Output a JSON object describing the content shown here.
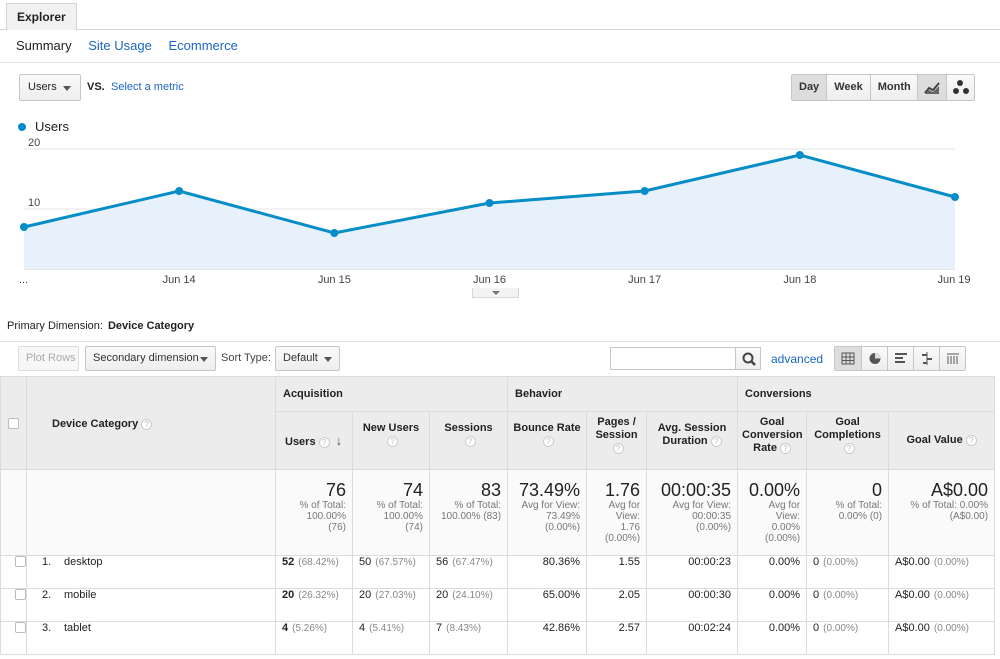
{
  "tabs": {
    "explorer": "Explorer"
  },
  "subtabs": [
    {
      "label": "Summary",
      "active": true
    },
    {
      "label": "Site Usage",
      "active": false
    },
    {
      "label": "Ecommerce",
      "active": false
    }
  ],
  "chart_controls": {
    "metric": "Users",
    "vs": "VS.",
    "select_metric": "Select a metric",
    "periods": [
      "Day",
      "Week",
      "Month"
    ],
    "active_period": "Day"
  },
  "chart_data": {
    "type": "line",
    "legend": [
      "Users"
    ],
    "x": [
      "...",
      "Jun 14",
      "Jun 15",
      "Jun 16",
      "Jun 17",
      "Jun 18",
      "Jun 19"
    ],
    "y_ticks": [
      "10",
      "20"
    ],
    "ylim": [
      0,
      20
    ],
    "series": [
      {
        "name": "Users",
        "values": [
          7,
          13,
          6,
          11,
          13,
          19,
          12
        ]
      }
    ],
    "color": "#058dc7",
    "fill": "#e7f1fb"
  },
  "dimension": {
    "label": "Primary Dimension:",
    "value": "Device Category"
  },
  "toolbar": {
    "plot_rows": "Plot Rows",
    "secondary_dimension": "Secondary dimension",
    "sort_type_label": "Sort Type:",
    "sort_type_value": "Default",
    "search_value": "",
    "advanced": "advanced"
  },
  "table": {
    "dimension_header": "Device Category",
    "groups": [
      "Acquisition",
      "Behavior",
      "Conversions"
    ],
    "columns": [
      {
        "label": "Users"
      },
      {
        "label": "New Users"
      },
      {
        "label": "Sessions"
      },
      {
        "label": "Bounce Rate"
      },
      {
        "label": "Pages / Session"
      },
      {
        "label": "Avg. Session Duration"
      },
      {
        "label": "Goal Conversion Rate"
      },
      {
        "label": "Goal Completions"
      },
      {
        "label": "Goal Value"
      }
    ],
    "totals": [
      {
        "value": "76",
        "sub": "% of Total:\n100.00%\n(76)"
      },
      {
        "value": "74",
        "sub": "% of Total:\n100.00%\n(74)"
      },
      {
        "value": "83",
        "sub": "% of Total:\n100.00% (83)"
      },
      {
        "value": "73.49%",
        "sub": "Avg for View:\n73.49%\n(0.00%)"
      },
      {
        "value": "1.76",
        "sub": "Avg for\nView:\n1.76\n(0.00%)"
      },
      {
        "value": "00:00:35",
        "sub": "Avg for View:\n00:00:35\n(0.00%)"
      },
      {
        "value": "0.00%",
        "sub": "Avg for\nView:\n0.00%\n(0.00%)"
      },
      {
        "value": "0",
        "sub": "% of Total:\n0.00% (0)"
      },
      {
        "value": "A$0.00",
        "sub": "% of Total: 0.00%\n(A$0.00)"
      }
    ],
    "rows": [
      {
        "index": "1.",
        "name": "desktop",
        "users": "52",
        "users_pct": "(68.42%)",
        "new_users": "50",
        "new_users_pct": "(67.57%)",
        "sessions": "56",
        "sessions_pct": "(67.47%)",
        "bounce": "80.36%",
        "pages": "1.55",
        "duration": "00:00:23",
        "conv_rate": "0.00%",
        "completions": "0",
        "completions_pct": "(0.00%)",
        "value": "A$0.00",
        "value_pct": "(0.00%)"
      },
      {
        "index": "2.",
        "name": "mobile",
        "users": "20",
        "users_pct": "(26.32%)",
        "new_users": "20",
        "new_users_pct": "(27.03%)",
        "sessions": "20",
        "sessions_pct": "(24.10%)",
        "bounce": "65.00%",
        "pages": "2.05",
        "duration": "00:00:30",
        "conv_rate": "0.00%",
        "completions": "0",
        "completions_pct": "(0.00%)",
        "value": "A$0.00",
        "value_pct": "(0.00%)"
      },
      {
        "index": "3.",
        "name": "tablet",
        "users": "4",
        "users_pct": "(5.26%)",
        "new_users": "4",
        "new_users_pct": "(5.41%)",
        "sessions": "7",
        "sessions_pct": "(8.43%)",
        "bounce": "42.86%",
        "pages": "2.57",
        "duration": "00:02:24",
        "conv_rate": "0.00%",
        "completions": "0",
        "completions_pct": "(0.00%)",
        "value": "A$0.00",
        "value_pct": "(0.00%)"
      }
    ]
  }
}
